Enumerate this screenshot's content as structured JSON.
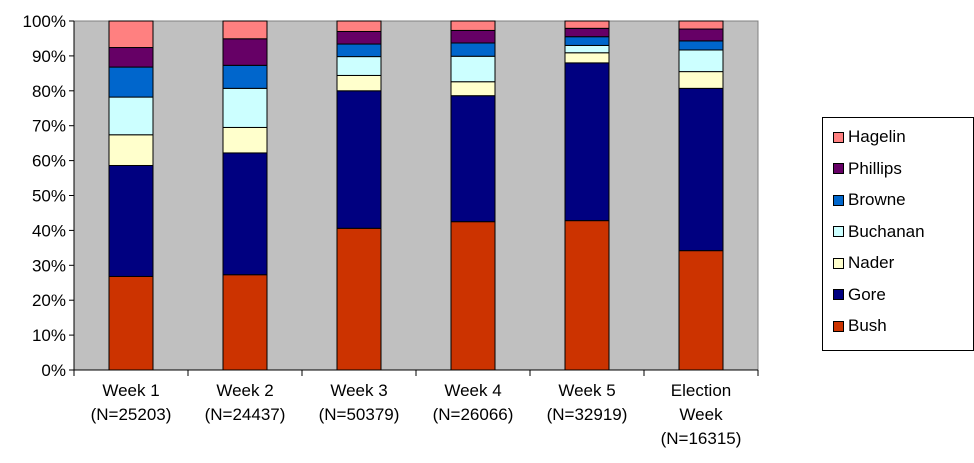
{
  "chart_data": {
    "type": "bar",
    "stacked": true,
    "percent": true,
    "title": "",
    "xlabel": "",
    "ylabel": "",
    "ylim": [
      0,
      100
    ],
    "y_ticks": [
      "0%",
      "10%",
      "20%",
      "30%",
      "40%",
      "50%",
      "60%",
      "70%",
      "80%",
      "90%",
      "100%"
    ],
    "grid": false,
    "legend_position": "right",
    "categories": [
      [
        "Week 1",
        "(N=25203)"
      ],
      [
        "Week 2",
        "(N=24437)"
      ],
      [
        "Week 3",
        "(N=50379)"
      ],
      [
        "Week 4",
        "(N=26066)"
      ],
      [
        "Week 5",
        "(N=32919)"
      ],
      [
        "Election",
        "Week",
        "(N=16315)"
      ]
    ],
    "series": [
      {
        "name": "Bush",
        "color": "#CC3300",
        "values": [
          26.8,
          27.3,
          40.6,
          42.5,
          42.8,
          34.2
        ]
      },
      {
        "name": "Gore",
        "color": "#000080",
        "values": [
          31.8,
          34.9,
          39.4,
          36.1,
          45.2,
          46.5
        ]
      },
      {
        "name": "Nader",
        "color": "#FFFFCC",
        "values": [
          8.8,
          7.3,
          4.4,
          4.0,
          2.9,
          4.8
        ]
      },
      {
        "name": "Buchanan",
        "color": "#CCFFFF",
        "values": [
          10.8,
          11.2,
          5.4,
          7.3,
          2.1,
          6.2
        ]
      },
      {
        "name": "Browne",
        "color": "#0066CC",
        "values": [
          8.6,
          6.6,
          3.6,
          3.8,
          2.5,
          2.6
        ]
      },
      {
        "name": "Phillips",
        "color": "#660066",
        "values": [
          5.6,
          7.6,
          3.6,
          3.6,
          2.4,
          3.4
        ]
      },
      {
        "name": "Hagelin",
        "color": "#FF8080",
        "values": [
          7.6,
          5.1,
          3.0,
          2.7,
          2.1,
          2.3
        ]
      }
    ],
    "plot_background": "#C0C0C0"
  }
}
